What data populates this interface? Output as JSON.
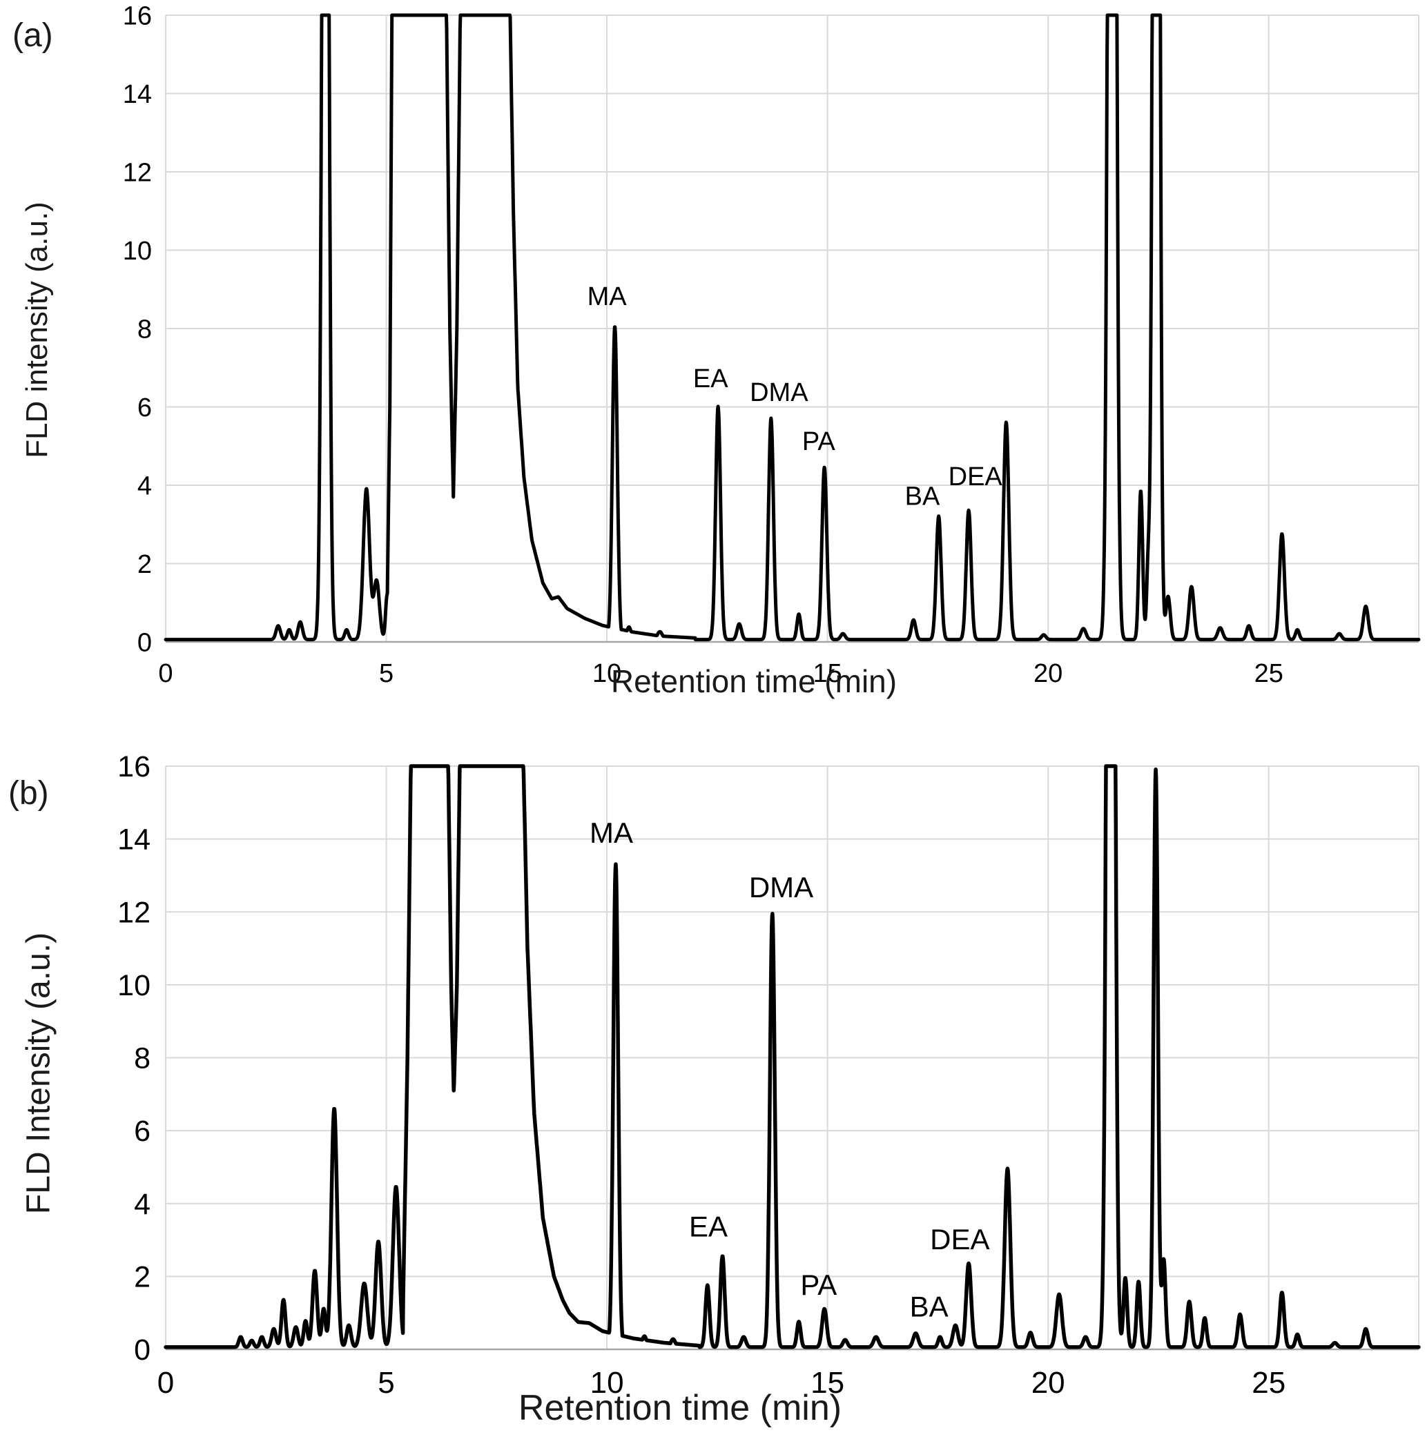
{
  "figure": {
    "description": "Two stacked HPLC-FLD chromatograms labelled (a) and (b)",
    "line_color": "#000000",
    "grid_color": "#d9d9d9",
    "background": "#ffffff"
  },
  "chart_data": [
    {
      "type": "line",
      "panel": "(a)",
      "xlabel": "Retention time (min)",
      "ylabel": "FLD intensity (a.u.)",
      "xlim": [
        0,
        28.4
      ],
      "ylim": [
        0,
        16
      ],
      "xticks": [
        0,
        5,
        10,
        15,
        20,
        25
      ],
      "yticks": [
        0,
        2,
        4,
        6,
        8,
        10,
        12,
        14,
        16
      ],
      "grid": true,
      "clip_level": 16,
      "baseline": 0.06,
      "envelope": [
        [
          5.02,
          0.9
        ],
        [
          5.08,
          6
        ],
        [
          5.13,
          16.5
        ],
        [
          6.36,
          16.5
        ],
        [
          6.44,
          8
        ],
        [
          6.52,
          3.7
        ],
        [
          6.6,
          8
        ],
        [
          6.68,
          16.5
        ],
        [
          7.8,
          16.5
        ],
        [
          7.88,
          11
        ],
        [
          7.98,
          6.5
        ],
        [
          8.12,
          4.2
        ],
        [
          8.3,
          2.6
        ],
        [
          8.55,
          1.5
        ],
        [
          8.75,
          1.1
        ],
        [
          8.9,
          1.15
        ],
        [
          9.1,
          0.85
        ],
        [
          9.5,
          0.6
        ],
        [
          9.9,
          0.42
        ],
        [
          10.6,
          0.25
        ],
        [
          11.2,
          0.15
        ],
        [
          12.0,
          0.1
        ]
      ],
      "peaks": [
        {
          "t": 2.55,
          "h": 0.35,
          "w": 0.07
        },
        {
          "t": 2.8,
          "h": 0.25,
          "w": 0.06
        },
        {
          "t": 3.05,
          "h": 0.45,
          "w": 0.07
        },
        {
          "t": 3.62,
          "h": 40,
          "w": 0.09,
          "clipped": true
        },
        {
          "t": 4.1,
          "h": 0.25,
          "w": 0.06
        },
        {
          "t": 4.55,
          "h": 3.85,
          "w": 0.1
        },
        {
          "t": 4.78,
          "h": 1.5,
          "w": 0.09
        },
        {
          "t": 5.02,
          "h": 1.15,
          "w": 0.05
        },
        {
          "t": 10.18,
          "h": 8.0,
          "w": 0.078,
          "label": "MA"
        },
        {
          "t": 10.5,
          "h": 0.32,
          "w": 0.07
        },
        {
          "t": 11.2,
          "h": 0.2,
          "w": 0.08
        },
        {
          "t": 12.52,
          "h": 5.95,
          "w": 0.078,
          "label": "EA"
        },
        {
          "t": 13.0,
          "h": 0.4,
          "w": 0.07
        },
        {
          "t": 13.72,
          "h": 5.65,
          "w": 0.078,
          "label": "DMA"
        },
        {
          "t": 14.35,
          "h": 0.65,
          "w": 0.06
        },
        {
          "t": 14.93,
          "h": 4.4,
          "w": 0.078,
          "label": "PA"
        },
        {
          "t": 15.35,
          "h": 0.15,
          "w": 0.07
        },
        {
          "t": 16.95,
          "h": 0.5,
          "w": 0.07
        },
        {
          "t": 17.52,
          "h": 3.15,
          "w": 0.078,
          "label": "BA"
        },
        {
          "t": 18.2,
          "h": 3.3,
          "w": 0.078,
          "label": "DEA"
        },
        {
          "t": 19.05,
          "h": 5.55,
          "w": 0.085
        },
        {
          "t": 19.9,
          "h": 0.12,
          "w": 0.07
        },
        {
          "t": 20.8,
          "h": 0.28,
          "w": 0.08
        },
        {
          "t": 21.45,
          "h": 55,
          "w": 0.1,
          "clipped": true
        },
        {
          "t": 22.1,
          "h": 3.8,
          "w": 0.06
        },
        {
          "t": 22.27,
          "h": 1.9,
          "w": 0.05
        },
        {
          "t": 22.45,
          "h": 55,
          "w": 0.085,
          "clipped": true
        },
        {
          "t": 22.72,
          "h": 1.1,
          "w": 0.07
        },
        {
          "t": 23.25,
          "h": 1.35,
          "w": 0.08
        },
        {
          "t": 23.9,
          "h": 0.3,
          "w": 0.08
        },
        {
          "t": 24.55,
          "h": 0.35,
          "w": 0.07
        },
        {
          "t": 25.3,
          "h": 2.7,
          "w": 0.08
        },
        {
          "t": 25.65,
          "h": 0.25,
          "w": 0.06
        },
        {
          "t": 26.6,
          "h": 0.15,
          "w": 0.07
        },
        {
          "t": 27.2,
          "h": 0.85,
          "w": 0.08
        }
      ],
      "annotations": [
        {
          "text": "MA",
          "x": 10.0,
          "y": 8.6
        },
        {
          "text": "EA",
          "x": 12.35,
          "y": 6.5
        },
        {
          "text": "DMA",
          "x": 13.9,
          "y": 6.15
        },
        {
          "text": "PA",
          "x": 14.8,
          "y": 4.9
        },
        {
          "text": "BA",
          "x": 17.15,
          "y": 3.5
        },
        {
          "text": "DEA",
          "x": 18.35,
          "y": 4.0
        }
      ]
    },
    {
      "type": "line",
      "panel": "(b)",
      "xlabel": "Retention time (min)",
      "ylabel": "FLD Intensity (a.u.)",
      "xlim": [
        0,
        28.4
      ],
      "ylim": [
        0,
        16
      ],
      "xticks": [
        0,
        5,
        10,
        15,
        20,
        25
      ],
      "yticks": [
        0,
        2,
        4,
        6,
        8,
        10,
        12,
        14,
        16
      ],
      "grid": true,
      "clip_level": 16,
      "baseline": 0.06,
      "envelope": [
        [
          5.38,
          1.2
        ],
        [
          5.48,
          8
        ],
        [
          5.56,
          16.5
        ],
        [
          6.4,
          16.5
        ],
        [
          6.47,
          10
        ],
        [
          6.53,
          7.0
        ],
        [
          6.6,
          10
        ],
        [
          6.67,
          16.5
        ],
        [
          8.1,
          16.5
        ],
        [
          8.2,
          11
        ],
        [
          8.35,
          6.5
        ],
        [
          8.55,
          3.6
        ],
        [
          8.8,
          2.0
        ],
        [
          9.0,
          1.35
        ],
        [
          9.15,
          1.0
        ],
        [
          9.35,
          0.75
        ],
        [
          9.6,
          0.72
        ],
        [
          9.9,
          0.5
        ],
        [
          10.6,
          0.3
        ],
        [
          11.3,
          0.18
        ],
        [
          12.1,
          0.1
        ]
      ],
      "peaks": [
        {
          "t": 1.7,
          "h": 0.28,
          "w": 0.06
        },
        {
          "t": 1.95,
          "h": 0.18,
          "w": 0.06
        },
        {
          "t": 2.18,
          "h": 0.28,
          "w": 0.06
        },
        {
          "t": 2.45,
          "h": 0.5,
          "w": 0.07
        },
        {
          "t": 2.67,
          "h": 1.3,
          "w": 0.065
        },
        {
          "t": 2.95,
          "h": 0.55,
          "w": 0.07
        },
        {
          "t": 3.17,
          "h": 0.72,
          "w": 0.06
        },
        {
          "t": 3.38,
          "h": 2.1,
          "w": 0.075
        },
        {
          "t": 3.58,
          "h": 1.05,
          "w": 0.06
        },
        {
          "t": 3.82,
          "h": 6.55,
          "w": 0.09
        },
        {
          "t": 4.15,
          "h": 0.6,
          "w": 0.07
        },
        {
          "t": 4.5,
          "h": 1.75,
          "w": 0.1
        },
        {
          "t": 4.82,
          "h": 2.9,
          "w": 0.09
        },
        {
          "t": 5.22,
          "h": 4.4,
          "w": 0.1
        },
        {
          "t": 10.2,
          "h": 13.25,
          "w": 0.078,
          "label": "MA"
        },
        {
          "t": 10.85,
          "h": 0.3,
          "w": 0.07
        },
        {
          "t": 11.5,
          "h": 0.22,
          "w": 0.07
        },
        {
          "t": 12.28,
          "h": 1.7,
          "w": 0.065
        },
        {
          "t": 12.62,
          "h": 2.5,
          "w": 0.07,
          "label": "EA"
        },
        {
          "t": 13.1,
          "h": 0.28,
          "w": 0.07
        },
        {
          "t": 13.75,
          "h": 11.9,
          "w": 0.078,
          "label": "DMA"
        },
        {
          "t": 14.35,
          "h": 0.7,
          "w": 0.06
        },
        {
          "t": 14.93,
          "h": 1.05,
          "w": 0.075,
          "label": "PA"
        },
        {
          "t": 15.4,
          "h": 0.2,
          "w": 0.07
        },
        {
          "t": 16.1,
          "h": 0.28,
          "w": 0.08
        },
        {
          "t": 17.0,
          "h": 0.38,
          "w": 0.08
        },
        {
          "t": 17.55,
          "h": 0.28,
          "w": 0.06,
          "label": "BA"
        },
        {
          "t": 17.9,
          "h": 0.6,
          "w": 0.08
        },
        {
          "t": 18.2,
          "h": 2.3,
          "w": 0.08,
          "label": "DEA"
        },
        {
          "t": 19.08,
          "h": 4.9,
          "w": 0.09
        },
        {
          "t": 19.6,
          "h": 0.4,
          "w": 0.07
        },
        {
          "t": 20.25,
          "h": 1.45,
          "w": 0.09
        },
        {
          "t": 20.85,
          "h": 0.28,
          "w": 0.07
        },
        {
          "t": 21.42,
          "h": 55,
          "w": 0.1,
          "clipped": true
        },
        {
          "t": 21.75,
          "h": 1.9,
          "w": 0.06
        },
        {
          "t": 22.05,
          "h": 1.8,
          "w": 0.06
        },
        {
          "t": 22.44,
          "h": 15.85,
          "w": 0.07
        },
        {
          "t": 22.62,
          "h": 2.4,
          "w": 0.06
        },
        {
          "t": 23.2,
          "h": 1.25,
          "w": 0.07
        },
        {
          "t": 23.55,
          "h": 0.8,
          "w": 0.06
        },
        {
          "t": 24.35,
          "h": 0.9,
          "w": 0.07
        },
        {
          "t": 25.3,
          "h": 1.5,
          "w": 0.07
        },
        {
          "t": 25.65,
          "h": 0.35,
          "w": 0.06
        },
        {
          "t": 26.5,
          "h": 0.12,
          "w": 0.07
        },
        {
          "t": 27.2,
          "h": 0.5,
          "w": 0.07
        }
      ],
      "annotations": [
        {
          "text": "MA",
          "x": 10.1,
          "y": 13.9
        },
        {
          "text": "DMA",
          "x": 13.95,
          "y": 12.4
        },
        {
          "text": "EA",
          "x": 12.3,
          "y": 3.1
        },
        {
          "text": "PA",
          "x": 14.8,
          "y": 1.5
        },
        {
          "text": "BA",
          "x": 17.3,
          "y": 0.9
        },
        {
          "text": "DEA",
          "x": 18.0,
          "y": 2.75
        }
      ]
    }
  ]
}
